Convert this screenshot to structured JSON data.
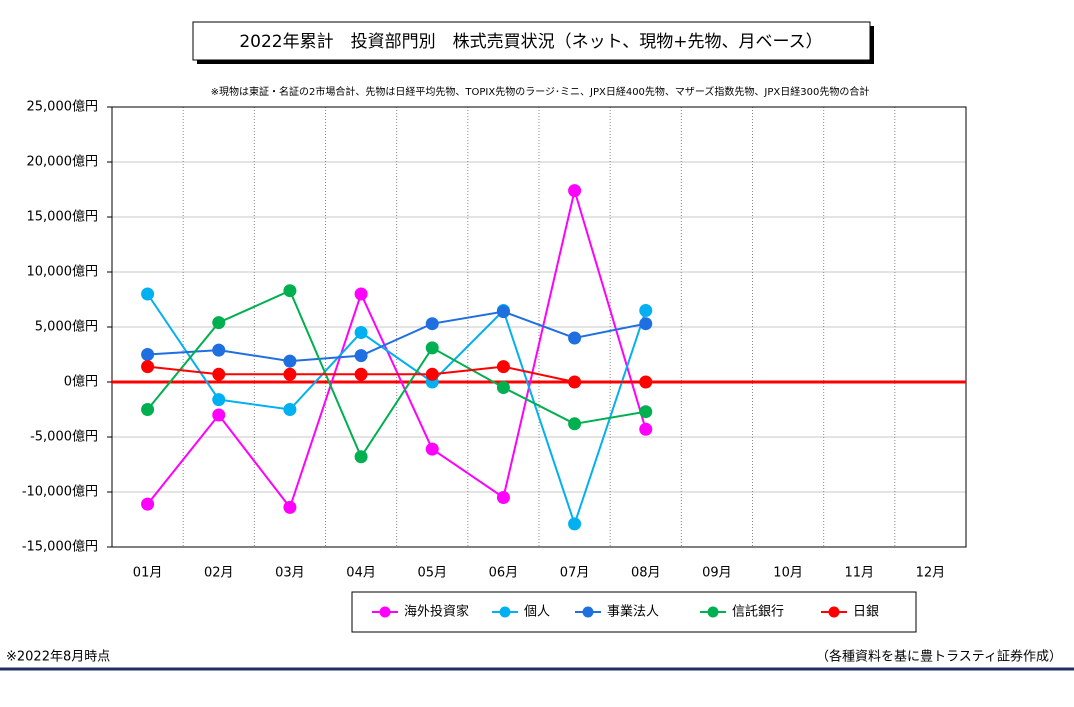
{
  "chart_data": {
    "type": "line",
    "title": "2022年累計　投資部門別　株式売買状況（ネット、現物+先物、月ベース）",
    "subtitle": "※現物は東証・名証の2市場合計、先物は日経平均先物、TOPIX先物のラージ･ミニ、JPX日経400先物、マザーズ指数先物、JPX日経300先物の合計",
    "categories": [
      "01月",
      "02月",
      "03月",
      "04月",
      "05月",
      "06月",
      "07月",
      "08月",
      "09月",
      "10月",
      "11月",
      "12月"
    ],
    "series": [
      {
        "name": "海外投資家",
        "color": "#ff00ff",
        "values": [
          -11100,
          -3000,
          -11400,
          8000,
          -6100,
          -10500,
          17400,
          -4300,
          null,
          null,
          null,
          null
        ]
      },
      {
        "name": "個人",
        "color": "#00b0f0",
        "values": [
          8000,
          -1600,
          -2500,
          4500,
          0,
          6500,
          -12900,
          6500,
          null,
          null,
          null,
          null
        ]
      },
      {
        "name": "事業法人",
        "color": "#1f6fe0",
        "values": [
          2500,
          2900,
          1900,
          2400,
          5300,
          6400,
          4000,
          5300,
          null,
          null,
          null,
          null
        ]
      },
      {
        "name": "信託銀行",
        "color": "#00b050",
        "values": [
          -2500,
          5400,
          8300,
          -6800,
          3100,
          -500,
          -3800,
          -2700,
          null,
          null,
          null,
          null
        ]
      },
      {
        "name": "日銀",
        "color": "#ff0000",
        "values": [
          1400,
          700,
          700,
          700,
          700,
          1400,
          0,
          0,
          null,
          null,
          null,
          null
        ]
      }
    ],
    "ylim": [
      -15000,
      25000
    ],
    "yticks": [
      {
        "value": -15000,
        "label": "-15,000億円"
      },
      {
        "value": -10000,
        "label": "-10,000億円"
      },
      {
        "value": -5000,
        "label": "-5,000億円"
      },
      {
        "value": 0,
        "label": "0億円"
      },
      {
        "value": 5000,
        "label": "5,000億円"
      },
      {
        "value": 10000,
        "label": "10,000億円"
      },
      {
        "value": 15000,
        "label": "15,000億円"
      },
      {
        "value": 20000,
        "label": "20,000億円"
      },
      {
        "value": 25000,
        "label": "25,000億円"
      }
    ],
    "grid": true,
    "legend": "bottom",
    "negative_tick_color": "#ff0000",
    "zero_line_color": "#ff0000",
    "footnote": "※2022年8月時点",
    "source": "（各種資料を基に豊トラスティ証券作成）"
  }
}
